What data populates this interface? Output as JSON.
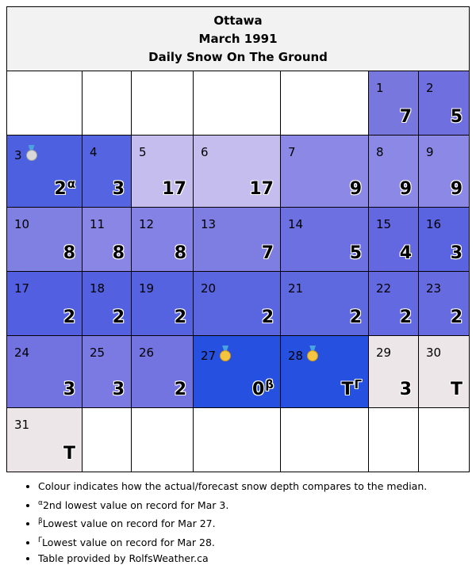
{
  "header": {
    "city": "Ottawa",
    "month": "March 1991",
    "metric": "Daily Snow On The Ground"
  },
  "colors": {
    "empty": "#ffffff",
    "no_median": "#ede6e8"
  },
  "days": [
    {
      "day": "1",
      "value": "7",
      "sup": "",
      "color": "#7777dd",
      "medal": ""
    },
    {
      "day": "2",
      "value": "5",
      "sup": "",
      "color": "#6f6fe0",
      "medal": ""
    },
    {
      "day": "3",
      "value": "2",
      "sup": "α",
      "color": "#4d60e0",
      "medal": "silver"
    },
    {
      "day": "4",
      "value": "3",
      "sup": "",
      "color": "#5564e0",
      "medal": ""
    },
    {
      "day": "5",
      "value": "17",
      "sup": "",
      "color": "#c4bdee",
      "medal": ""
    },
    {
      "day": "6",
      "value": "17",
      "sup": "",
      "color": "#c4bdee",
      "medal": ""
    },
    {
      "day": "7",
      "value": "9",
      "sup": "",
      "color": "#8b88e6",
      "medal": ""
    },
    {
      "day": "8",
      "value": "9",
      "sup": "",
      "color": "#8b88e6",
      "medal": ""
    },
    {
      "day": "9",
      "value": "9",
      "sup": "",
      "color": "#8b88e6",
      "medal": ""
    },
    {
      "day": "10",
      "value": "8",
      "sup": "",
      "color": "#807fe2",
      "medal": ""
    },
    {
      "day": "11",
      "value": "8",
      "sup": "",
      "color": "#8986e5",
      "medal": ""
    },
    {
      "day": "12",
      "value": "8",
      "sup": "",
      "color": "#8482e4",
      "medal": ""
    },
    {
      "day": "13",
      "value": "7",
      "sup": "",
      "color": "#7e7de2",
      "medal": ""
    },
    {
      "day": "14",
      "value": "5",
      "sup": "",
      "color": "#6c70e0",
      "medal": ""
    },
    {
      "day": "15",
      "value": "4",
      "sup": "",
      "color": "#6468e0",
      "medal": ""
    },
    {
      "day": "16",
      "value": "3",
      "sup": "",
      "color": "#5a63e0",
      "medal": ""
    },
    {
      "day": "17",
      "value": "2",
      "sup": "",
      "color": "#515fe0",
      "medal": ""
    },
    {
      "day": "18",
      "value": "2",
      "sup": "",
      "color": "#5361e0",
      "medal": ""
    },
    {
      "day": "19",
      "value": "2",
      "sup": "",
      "color": "#5563e0",
      "medal": ""
    },
    {
      "day": "20",
      "value": "2",
      "sup": "",
      "color": "#5a66e0",
      "medal": ""
    },
    {
      "day": "21",
      "value": "2",
      "sup": "",
      "color": "#5e69e0",
      "medal": ""
    },
    {
      "day": "22",
      "value": "2",
      "sup": "",
      "color": "#6369e0",
      "medal": ""
    },
    {
      "day": "23",
      "value": "2",
      "sup": "",
      "color": "#666ce0",
      "medal": ""
    },
    {
      "day": "24",
      "value": "3",
      "sup": "",
      "color": "#7272e0",
      "medal": ""
    },
    {
      "day": "25",
      "value": "3",
      "sup": "",
      "color": "#7a7ae2",
      "medal": ""
    },
    {
      "day": "26",
      "value": "2",
      "sup": "",
      "color": "#7474e0",
      "medal": ""
    },
    {
      "day": "27",
      "value": "0",
      "sup": "β",
      "color": "#2550e0",
      "medal": "gold"
    },
    {
      "day": "28",
      "value": "T",
      "sup": "Γ",
      "color": "#2550e0",
      "medal": "gold"
    },
    {
      "day": "29",
      "value": "3",
      "sup": "",
      "color": "#ede6e8",
      "medal": ""
    },
    {
      "day": "30",
      "value": "T",
      "sup": "",
      "color": "#ede6e8",
      "medal": ""
    },
    {
      "day": "31",
      "value": "T",
      "sup": "",
      "color": "#ede6e8",
      "medal": ""
    }
  ],
  "notes": [
    {
      "sup": "",
      "text": "Colour indicates how the actual/forecast snow depth compares to the median."
    },
    {
      "sup": "α",
      "text": "2nd lowest value on record for Mar 3."
    },
    {
      "sup": "β",
      "text": "Lowest value on record for Mar 27."
    },
    {
      "sup": "Γ",
      "text": "Lowest value on record for Mar 28."
    },
    {
      "sup": "",
      "text": "Table provided by RolfsWeather.ca"
    }
  ]
}
